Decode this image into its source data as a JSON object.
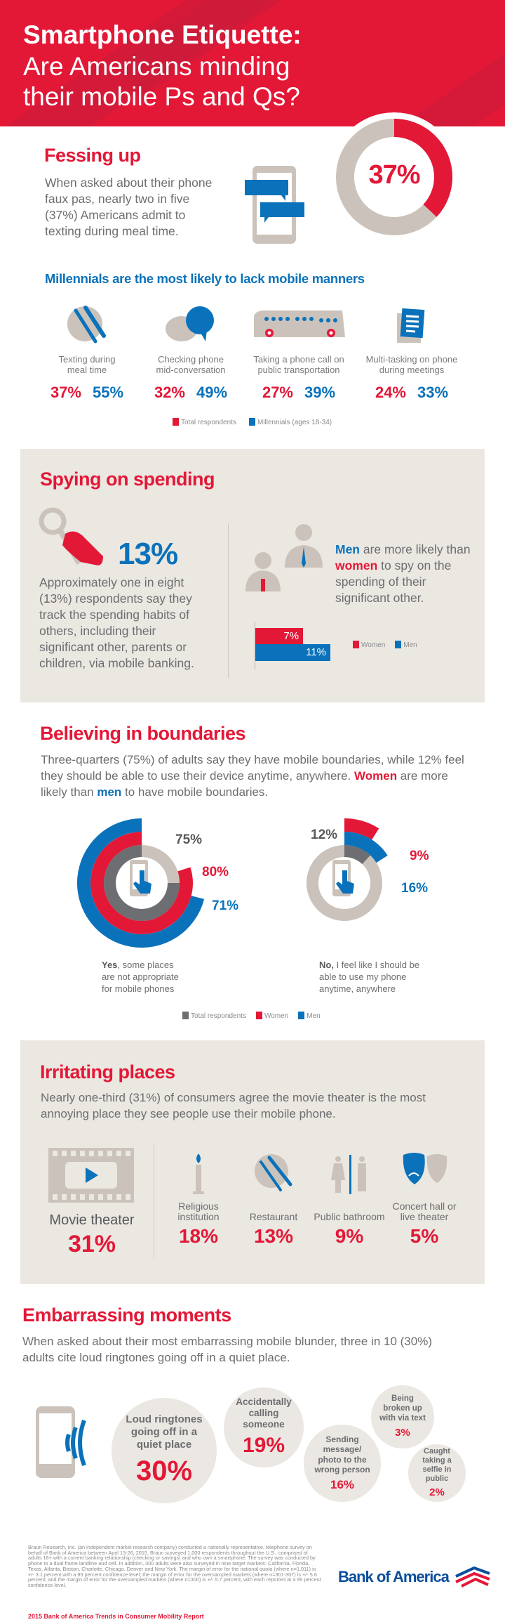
{
  "colors": {
    "red": "#e31837",
    "blue": "#0a72ba",
    "panel": "#ebe7e1",
    "icon_gray": "#cbc3bb",
    "dark_gray": "#6d6e71"
  },
  "header": {
    "title_line1": "Smartphone Etiquette:",
    "title_line2": "Are Americans minding",
    "title_line3": "their mobile Ps and Qs?"
  },
  "fessing": {
    "heading": "Fessing up",
    "body": "When asked about their phone faux pas, nearly two in five (37%) Americans admit to texting during meal time.",
    "percent_label": "37%",
    "value": 37
  },
  "millennials": {
    "heading": "Millennials are the most likely to lack mobile manners",
    "items": [
      {
        "icon": "plate-utensils-icon",
        "line1": "Texting during",
        "line2": "meal time",
        "total": "37%",
        "millennials": "55%"
      },
      {
        "icon": "speech-bubbles-icon",
        "line1": "Checking phone",
        "line2": "mid-conversation",
        "total": "32%",
        "millennials": "49%"
      },
      {
        "icon": "bus-icon",
        "line1": "Taking a phone call on",
        "line2": "public transportation",
        "total": "27%",
        "millennials": "39%"
      },
      {
        "icon": "document-icon",
        "line1": "Multi-tasking on phone",
        "line2": "during meetings",
        "total": "24%",
        "millennials": "33%"
      }
    ],
    "legend": {
      "total": "Total respondents",
      "millennials": "Millennials (ages 18-34)"
    }
  },
  "spying": {
    "heading": "Spying on spending",
    "percent_label": "13%",
    "body": "Approximately one in eight (13%) respondents say they track the spending habits of others, including their significant other, parents or children, via mobile banking.",
    "men": "Men",
    "text1": " are more likely than ",
    "women": "women",
    "text2": " to spy on the spending of their significant other.",
    "bars": [
      {
        "name": "Women",
        "value": 7,
        "label": "7%"
      },
      {
        "name": "Men",
        "value": 11,
        "label": "11%"
      }
    ],
    "legend": {
      "women": "Women",
      "men": "Men"
    }
  },
  "boundaries": {
    "heading": "Believing in boundaries",
    "body1": "Three-quarters (75%) of adults say they have mobile boundaries, while 12% feel they should be able to use their device anytime, anywhere. ",
    "women": "Women",
    "body2": " are more likely than ",
    "men": "men",
    "body3": " to have mobile boundaries.",
    "yes": {
      "total": 75,
      "women": 80,
      "men": 71,
      "total_label": "75%",
      "women_label": "80%",
      "men_label": "71%",
      "bold": "Yes",
      "caption": ", some places are not appropriate for mobile phones"
    },
    "no": {
      "total": 12,
      "women": 9,
      "men": 16,
      "total_label": "12%",
      "women_label": "9%",
      "men_label": "16%",
      "bold": "No,",
      "caption": " I feel like I should be able to use my phone anytime, anywhere"
    },
    "legend": {
      "total": "Total respondents",
      "women": "Women",
      "men": "Men"
    }
  },
  "irritating": {
    "heading": "Irritating places",
    "body": "Nearly one-third (31%) of consumers agree the movie theater is the most annoying place they see people use their mobile phone.",
    "featured": {
      "label": "Movie theater",
      "percent": "31%"
    },
    "items": [
      {
        "label": "Religious institution",
        "percent": "18%"
      },
      {
        "label": "Restaurant",
        "percent": "13%"
      },
      {
        "label": "Public bathroom",
        "percent": "9%"
      },
      {
        "label": "Concert hall or live theater",
        "percent": "5%"
      }
    ]
  },
  "embarrassing": {
    "heading": "Embarrassing moments",
    "body": "When asked about their most embarrassing mobile blunder, three in 10 (30%) adults cite loud ringtones going off in a quiet place.",
    "bubbles": [
      {
        "label": "Loud ringtones going off in a quiet place",
        "percent": "30%"
      },
      {
        "label": "Accidentally calling someone",
        "percent": "19%"
      },
      {
        "label": "Sending message/ photo to the wrong person",
        "percent": "16%"
      },
      {
        "label": "Being broken up with via text",
        "percent": "3%"
      },
      {
        "label": "Caught taking a selfie in public",
        "percent": "2%"
      }
    ]
  },
  "footer": {
    "note": "Braun Research, Inc. (an independent market research company) conducted a nationally representative, telephone survey on behalf of Bank of America between April 13-26, 2015. Braun surveyed 1,000 respondents throughout the U.S., comprised of adults 18+ with a current banking relationship (checking or savings) and who own a smartphone. The survey was conducted by phone to a dual frame landline and cell. In addition, 300 adults were also surveyed in nine target markets: California, Florida, Texas, Atlanta, Boston, Charlotte, Chicago, Denver and New York. The margin of error for the national quota (where n=1,011) is +/- 3.1 percent with a 95 percent confidence level; the margin of error for the oversampled markets (where n=301-307) is +/- 5.6 percent; and the margin of error for the oversampled markets (where n=300) is +/- 5.7 percent, with each reported at a 95 percent confidence level.",
    "report_title": "2015 Bank of America Trends in Consumer Mobility Report",
    "logo_text": "Bank of America"
  }
}
